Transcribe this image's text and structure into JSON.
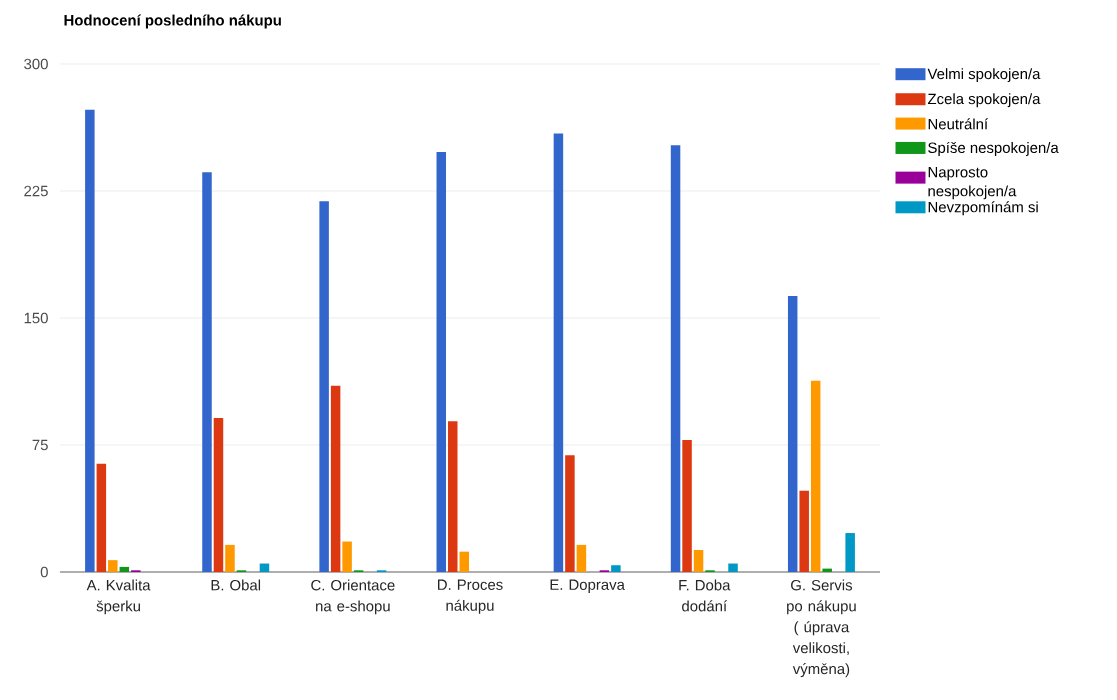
{
  "chart_data": {
    "type": "bar",
    "title": "Hodnocení posledního nákupu",
    "categories": [
      "A. Kvalita šperku",
      "B. Obal",
      "C. Orientace na e-shopu",
      "D. Proces nákupu",
      "E. Doprava",
      "F. Doba dodání",
      "G. Servis po nákupu ( úprava velikosti, výměna)"
    ],
    "series": [
      {
        "name": "Velmi spokojen/a",
        "color": "#3366cc",
        "values": [
          273,
          236,
          219,
          248,
          259,
          252,
          163
        ]
      },
      {
        "name": "Zcela spokojen/a",
        "color": "#dc3912",
        "values": [
          64,
          91,
          110,
          89,
          69,
          78,
          48
        ]
      },
      {
        "name": "Neutrální",
        "color": "#ff9900",
        "values": [
          7,
          16,
          18,
          12,
          16,
          13,
          113
        ]
      },
      {
        "name": "Spíše nespokojen/a",
        "color": "#109618",
        "values": [
          3,
          1,
          1,
          0,
          0,
          1,
          2
        ]
      },
      {
        "name": "Naprosto nespokojen/a",
        "color": "#990099",
        "values": [
          1,
          0,
          0,
          0,
          1,
          0,
          0
        ]
      },
      {
        "name": "Nevzpomínám si",
        "color": "#0099c6",
        "values": [
          0,
          5,
          1,
          0,
          4,
          5,
          23
        ]
      }
    ],
    "ylim": [
      0,
      300
    ],
    "yticks": [
      0,
      75,
      150,
      225,
      300
    ],
    "grid": "y",
    "legend": "right"
  }
}
